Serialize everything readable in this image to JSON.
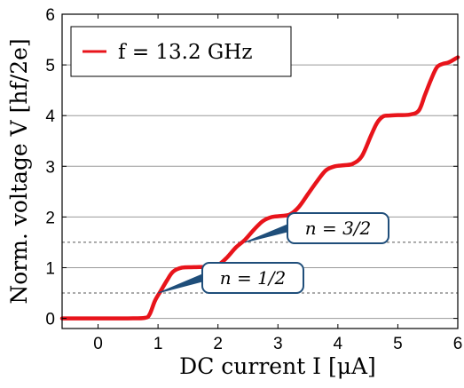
{
  "chart_data": {
    "type": "line",
    "title": "",
    "xlabel": "DC current I    [μA]",
    "ylabel": "Norm. voltage V    [hf/2e]",
    "xlim": [
      -0.6,
      6
    ],
    "ylim": [
      -0.2,
      6
    ],
    "xticks": [
      "0",
      "1",
      "2",
      "3",
      "4",
      "5",
      "6"
    ],
    "yticks": [
      "0",
      "1",
      "2",
      "3",
      "4",
      "5",
      "6"
    ],
    "grid": "horizontal",
    "legend_position": "top-left",
    "series": [
      {
        "name": "f = 13.2 GHz",
        "color": "#e8141b",
        "x": [
          -0.6,
          0.0,
          0.5,
          0.78,
          0.86,
          0.95,
          1.05,
          1.15,
          1.25,
          1.4,
          1.6,
          1.85,
          2.0,
          2.15,
          2.3,
          2.45,
          2.6,
          2.75,
          2.9,
          3.05,
          3.2,
          3.35,
          3.5,
          3.65,
          3.8,
          3.95,
          4.1,
          4.25,
          4.4,
          4.55,
          4.65,
          4.75,
          4.85,
          5.0,
          5.2,
          5.35,
          5.45,
          5.55,
          5.65,
          5.75,
          5.85,
          6.0
        ],
        "y": [
          0.0,
          0.0,
          0.0,
          0.01,
          0.08,
          0.35,
          0.55,
          0.75,
          0.92,
          1.0,
          1.01,
          1.02,
          1.05,
          1.2,
          1.4,
          1.55,
          1.75,
          1.92,
          2.0,
          2.02,
          2.05,
          2.2,
          2.45,
          2.7,
          2.92,
          3.0,
          3.02,
          3.05,
          3.2,
          3.6,
          3.85,
          3.98,
          4.0,
          4.01,
          4.02,
          4.1,
          4.4,
          4.7,
          4.95,
          5.02,
          5.05,
          5.15
        ]
      }
    ],
    "reference_lines": [
      {
        "y": 0.5,
        "style": "dashed",
        "color": "#555555"
      },
      {
        "y": 1.5,
        "style": "dashed",
        "color": "#555555"
      }
    ],
    "annotations": [
      {
        "text": "n = 1/2",
        "x": 1.0,
        "y": 0.5
      },
      {
        "text": "n = 3/2",
        "x": 2.45,
        "y": 1.5
      }
    ]
  },
  "colors": {
    "series": "#e8141b",
    "callout_border": "#1f4e7a",
    "grid": "#9a9a9a"
  }
}
